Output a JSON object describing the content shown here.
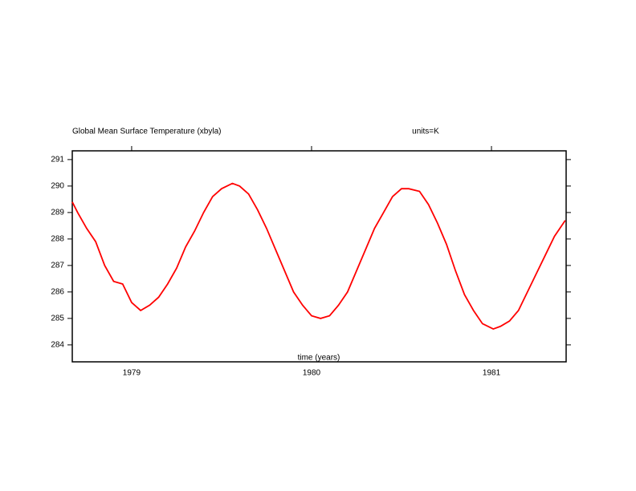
{
  "chart_data": {
    "type": "line",
    "title": "Global Mean Surface Temperature (xbyla)",
    "subtitle": "units=K",
    "x_label": "time (years)",
    "x": [
      1978.67,
      1978.7,
      1978.75,
      1978.8,
      1978.85,
      1978.9,
      1978.95,
      1979.0,
      1979.05,
      1979.1,
      1979.15,
      1979.2,
      1979.25,
      1979.3,
      1979.35,
      1979.4,
      1979.45,
      1979.5,
      1979.56,
      1979.6,
      1979.65,
      1979.7,
      1979.75,
      1979.8,
      1979.85,
      1979.9,
      1979.95,
      1980.0,
      1980.05,
      1980.1,
      1980.15,
      1980.2,
      1980.25,
      1980.3,
      1980.35,
      1980.4,
      1980.45,
      1980.5,
      1980.54,
      1980.6,
      1980.65,
      1980.7,
      1980.75,
      1980.8,
      1980.85,
      1980.9,
      1980.95,
      1981.01,
      1981.05,
      1981.1,
      1981.15,
      1981.2,
      1981.25,
      1981.3,
      1981.35,
      1981.41
    ],
    "series": [
      {
        "color": "#ff0000",
        "values": [
          289.4,
          289.0,
          288.4,
          287.9,
          287.0,
          286.4,
          286.3,
          285.6,
          285.3,
          285.5,
          285.8,
          286.3,
          286.9,
          287.7,
          288.3,
          289.0,
          289.6,
          289.9,
          290.1,
          290.0,
          289.7,
          289.1,
          288.4,
          287.6,
          286.8,
          286.0,
          285.5,
          285.1,
          285.0,
          285.1,
          285.5,
          286.0,
          286.8,
          287.6,
          288.4,
          289.0,
          289.6,
          289.9,
          289.9,
          289.8,
          289.3,
          288.6,
          287.8,
          286.8,
          285.9,
          285.3,
          284.8,
          284.6,
          284.7,
          284.9,
          285.3,
          286.0,
          286.7,
          287.4,
          288.1,
          288.7
        ]
      }
    ],
    "xlim": [
      1978.67,
      1981.415
    ],
    "xticks": [
      1979,
      1980,
      1981
    ],
    "ylim": [
      283.36,
      291.33
    ],
    "yticks": [
      284,
      285,
      286,
      287,
      288,
      289,
      290,
      291
    ],
    "grid": false
  }
}
